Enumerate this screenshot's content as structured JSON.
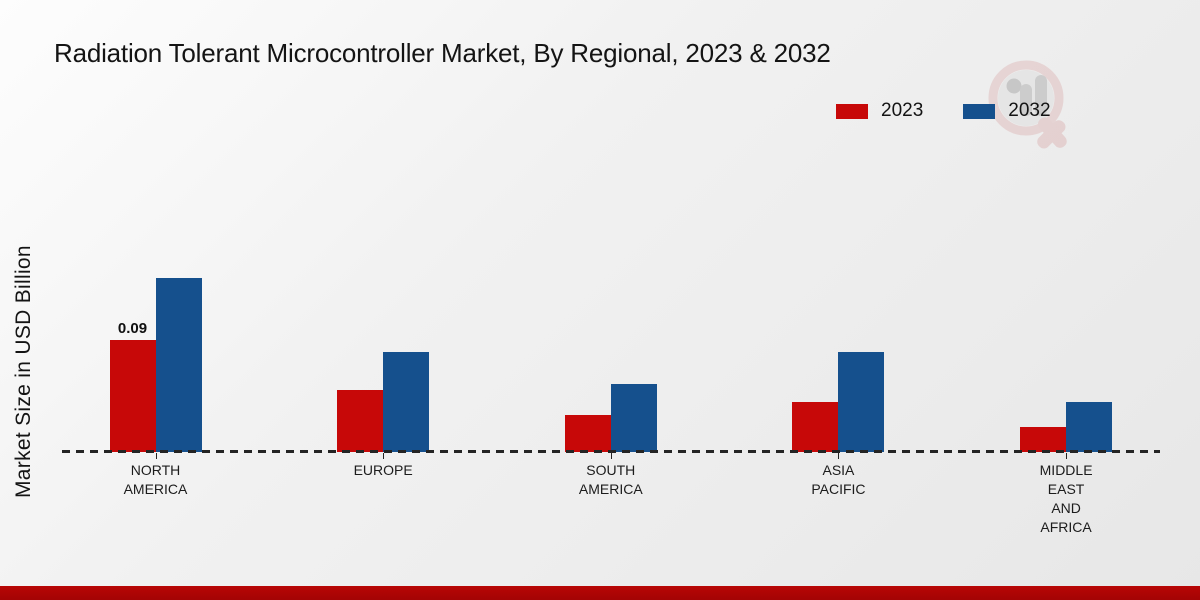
{
  "header": {
    "title": "Radiation Tolerant Microcontroller Market, By Regional, 2023 & 2032"
  },
  "axes": {
    "ylabel": "Market Size in USD Billion"
  },
  "legend": {
    "items": [
      {
        "label": "2023",
        "color": "#c70808"
      },
      {
        "label": "2032",
        "color": "#15508d"
      }
    ]
  },
  "chart_data": {
    "type": "bar",
    "title": "Radiation Tolerant Microcontroller Market, By Regional, 2023 & 2032",
    "xlabel": "",
    "ylabel": "Market Size in USD Billion",
    "categories": [
      "NORTH AMERICA",
      "EUROPE",
      "SOUTH AMERICA",
      "ASIA PACIFIC",
      "MIDDLE EAST AND AFRICA"
    ],
    "series": [
      {
        "name": "2023",
        "color": "#c70808",
        "values": [
          0.09,
          0.05,
          0.03,
          0.04,
          0.02
        ],
        "value_labels": [
          "0.09",
          "",
          "",
          "",
          ""
        ]
      },
      {
        "name": "2032",
        "color": "#15508d",
        "values": [
          0.14,
          0.08,
          0.055,
          0.08,
          0.04
        ],
        "value_labels": [
          "",
          "",
          "",
          "",
          ""
        ]
      }
    ],
    "ylim": [
      0,
      0.16
    ],
    "grid": false,
    "legend_position": "top-right",
    "baseline_style": "dashed",
    "y_axis_ticks_visible": false
  },
  "footer": {
    "accent_color": "#b80605"
  },
  "watermark": {
    "name": "brand-logo-watermark"
  }
}
